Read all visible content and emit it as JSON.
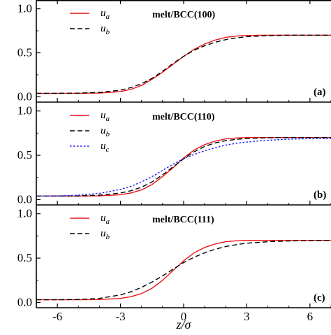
{
  "chart_data": [
    {
      "type": "line",
      "title": "melt/BCC(100)",
      "panel_label": "(a)",
      "xlim": [
        -7,
        7
      ],
      "ylim": [
        -0.06,
        1.1
      ],
      "yticks": [
        0.0,
        0.5,
        1.0
      ],
      "ytick_labels": [
        "0.0",
        "0.5",
        "1.0"
      ],
      "xticks": [
        -6,
        -3,
        0,
        3,
        6
      ],
      "show_xtick_labels": false,
      "series": [
        {
          "name": "u_a",
          "label_main": "u",
          "label_sub": "a",
          "color": "#e8161b",
          "dash": "solid",
          "x": [
            -7,
            -6,
            -5,
            -4,
            -3,
            -2.5,
            -2,
            -1.5,
            -1,
            -0.5,
            0,
            0.5,
            1,
            1.5,
            2,
            2.5,
            3,
            4,
            5,
            6,
            7
          ],
          "y": [
            0.04,
            0.04,
            0.04,
            0.043,
            0.06,
            0.085,
            0.13,
            0.2,
            0.28,
            0.37,
            0.46,
            0.54,
            0.6,
            0.645,
            0.675,
            0.69,
            0.697,
            0.7,
            0.7,
            0.7,
            0.7
          ]
        },
        {
          "name": "u_b",
          "label_main": "u",
          "label_sub": "b",
          "color": "#000000",
          "dash": "dashed",
          "x": [
            -7,
            -6,
            -5,
            -4,
            -3,
            -2.5,
            -2,
            -1.5,
            -1,
            -0.5,
            0,
            0.5,
            1,
            1.5,
            2,
            2.5,
            3,
            4,
            5,
            6,
            7
          ],
          "y": [
            0.04,
            0.04,
            0.042,
            0.05,
            0.075,
            0.105,
            0.15,
            0.21,
            0.29,
            0.38,
            0.46,
            0.53,
            0.58,
            0.62,
            0.65,
            0.67,
            0.683,
            0.695,
            0.7,
            0.7,
            0.7
          ]
        }
      ]
    },
    {
      "type": "line",
      "title": "melt/BCC(110)",
      "panel_label": "(b)",
      "xlim": [
        -7,
        7
      ],
      "ylim": [
        -0.06,
        1.1
      ],
      "yticks": [
        0.0,
        0.5,
        1.0
      ],
      "ytick_labels": [
        "0.0",
        "0.5",
        "1.0"
      ],
      "xticks": [
        -6,
        -3,
        0,
        3,
        6
      ],
      "show_xtick_labels": false,
      "series": [
        {
          "name": "u_a",
          "label_main": "u",
          "label_sub": "a",
          "color": "#e8161b",
          "dash": "solid",
          "x": [
            -7,
            -6,
            -5,
            -4,
            -3,
            -2.5,
            -2,
            -1.5,
            -1,
            -0.5,
            0,
            0.5,
            1,
            1.5,
            2,
            2.5,
            3,
            4,
            5,
            6,
            7
          ],
          "y": [
            0.04,
            0.04,
            0.04,
            0.042,
            0.055,
            0.075,
            0.11,
            0.17,
            0.26,
            0.36,
            0.47,
            0.56,
            0.62,
            0.66,
            0.685,
            0.695,
            0.7,
            0.7,
            0.7,
            0.7,
            0.7
          ]
        },
        {
          "name": "u_b",
          "label_main": "u",
          "label_sub": "b",
          "color": "#000000",
          "dash": "dashed",
          "x": [
            -7,
            -6,
            -5,
            -4,
            -3,
            -2.5,
            -2,
            -1.5,
            -1,
            -0.5,
            0,
            0.5,
            1,
            1.5,
            2,
            2.5,
            3,
            4,
            5,
            6,
            7
          ],
          "y": [
            0.04,
            0.04,
            0.042,
            0.05,
            0.075,
            0.1,
            0.14,
            0.2,
            0.28,
            0.37,
            0.46,
            0.54,
            0.6,
            0.64,
            0.665,
            0.68,
            0.69,
            0.698,
            0.7,
            0.7,
            0.7
          ]
        },
        {
          "name": "u_c",
          "label_main": "u",
          "label_sub": "c",
          "color": "#1a1aff",
          "dash": "dotted",
          "x": [
            -7,
            -6,
            -5,
            -4,
            -3,
            -2.5,
            -2,
            -1.5,
            -1,
            -0.5,
            0,
            0.5,
            1,
            1.5,
            2,
            2.5,
            3,
            4,
            5,
            6,
            7
          ],
          "y": [
            0.04,
            0.042,
            0.05,
            0.07,
            0.115,
            0.15,
            0.2,
            0.26,
            0.33,
            0.4,
            0.46,
            0.51,
            0.55,
            0.585,
            0.615,
            0.635,
            0.65,
            0.67,
            0.682,
            0.688,
            0.69
          ]
        }
      ]
    },
    {
      "type": "line",
      "title": "melt/BCC(111)",
      "panel_label": "(c)",
      "xlim": [
        -7,
        7
      ],
      "ylim": [
        -0.06,
        1.1
      ],
      "yticks": [
        0.0,
        0.5,
        1.0
      ],
      "ytick_labels": [
        "0.0",
        "0.5",
        "1.0"
      ],
      "xticks": [
        -6,
        -3,
        0,
        3,
        6
      ],
      "xtick_labels": [
        "-6",
        "-3",
        "0",
        "3",
        "6"
      ],
      "show_xtick_labels": true,
      "xlabel": "z/σ",
      "series": [
        {
          "name": "u_a",
          "label_main": "u",
          "label_sub": "a",
          "color": "#e8161b",
          "dash": "solid",
          "x": [
            -7,
            -6,
            -5,
            -4,
            -3,
            -2.5,
            -2,
            -1.5,
            -1,
            -0.5,
            0,
            0.5,
            1,
            1.5,
            2,
            2.5,
            3,
            4,
            5,
            6,
            7
          ],
          "y": [
            0.03,
            0.03,
            0.03,
            0.032,
            0.045,
            0.065,
            0.1,
            0.16,
            0.25,
            0.36,
            0.47,
            0.56,
            0.62,
            0.66,
            0.685,
            0.695,
            0.7,
            0.7,
            0.7,
            0.7,
            0.7
          ]
        },
        {
          "name": "u_b",
          "label_main": "u",
          "label_sub": "b",
          "color": "#000000",
          "dash": "dashed",
          "x": [
            -7,
            -6,
            -5,
            -4,
            -3,
            -2.5,
            -2,
            -1.5,
            -1,
            -0.5,
            0,
            0.5,
            1,
            1.5,
            2,
            2.5,
            3,
            4,
            5,
            6,
            7
          ],
          "y": [
            0.03,
            0.03,
            0.033,
            0.045,
            0.085,
            0.12,
            0.17,
            0.23,
            0.3,
            0.375,
            0.45,
            0.51,
            0.56,
            0.6,
            0.63,
            0.652,
            0.668,
            0.685,
            0.693,
            0.697,
            0.7
          ]
        }
      ]
    }
  ]
}
